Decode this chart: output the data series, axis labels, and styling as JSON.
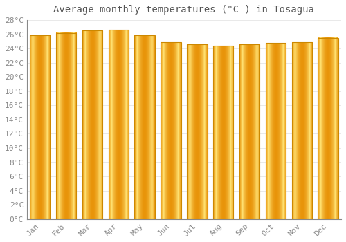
{
  "title": "Average monthly temperatures (°C ) in Tosagua",
  "months": [
    "Jan",
    "Feb",
    "Mar",
    "Apr",
    "May",
    "Jun",
    "Jul",
    "Aug",
    "Sep",
    "Oct",
    "Nov",
    "Dec"
  ],
  "values": [
    25.9,
    26.2,
    26.5,
    26.6,
    25.9,
    24.9,
    24.6,
    24.4,
    24.6,
    24.8,
    24.9,
    25.5
  ],
  "bar_color_center": "#FFD966",
  "bar_color_edge": "#FFA500",
  "bar_border_color": "#CC8800",
  "background_color": "#FFFFFF",
  "grid_color": "#E0E0E0",
  "ylim": [
    0,
    28
  ],
  "yticks": [
    0,
    2,
    4,
    6,
    8,
    10,
    12,
    14,
    16,
    18,
    20,
    22,
    24,
    26,
    28
  ],
  "title_fontsize": 10,
  "tick_fontsize": 8,
  "font_color": "#888888",
  "bar_width": 0.78
}
